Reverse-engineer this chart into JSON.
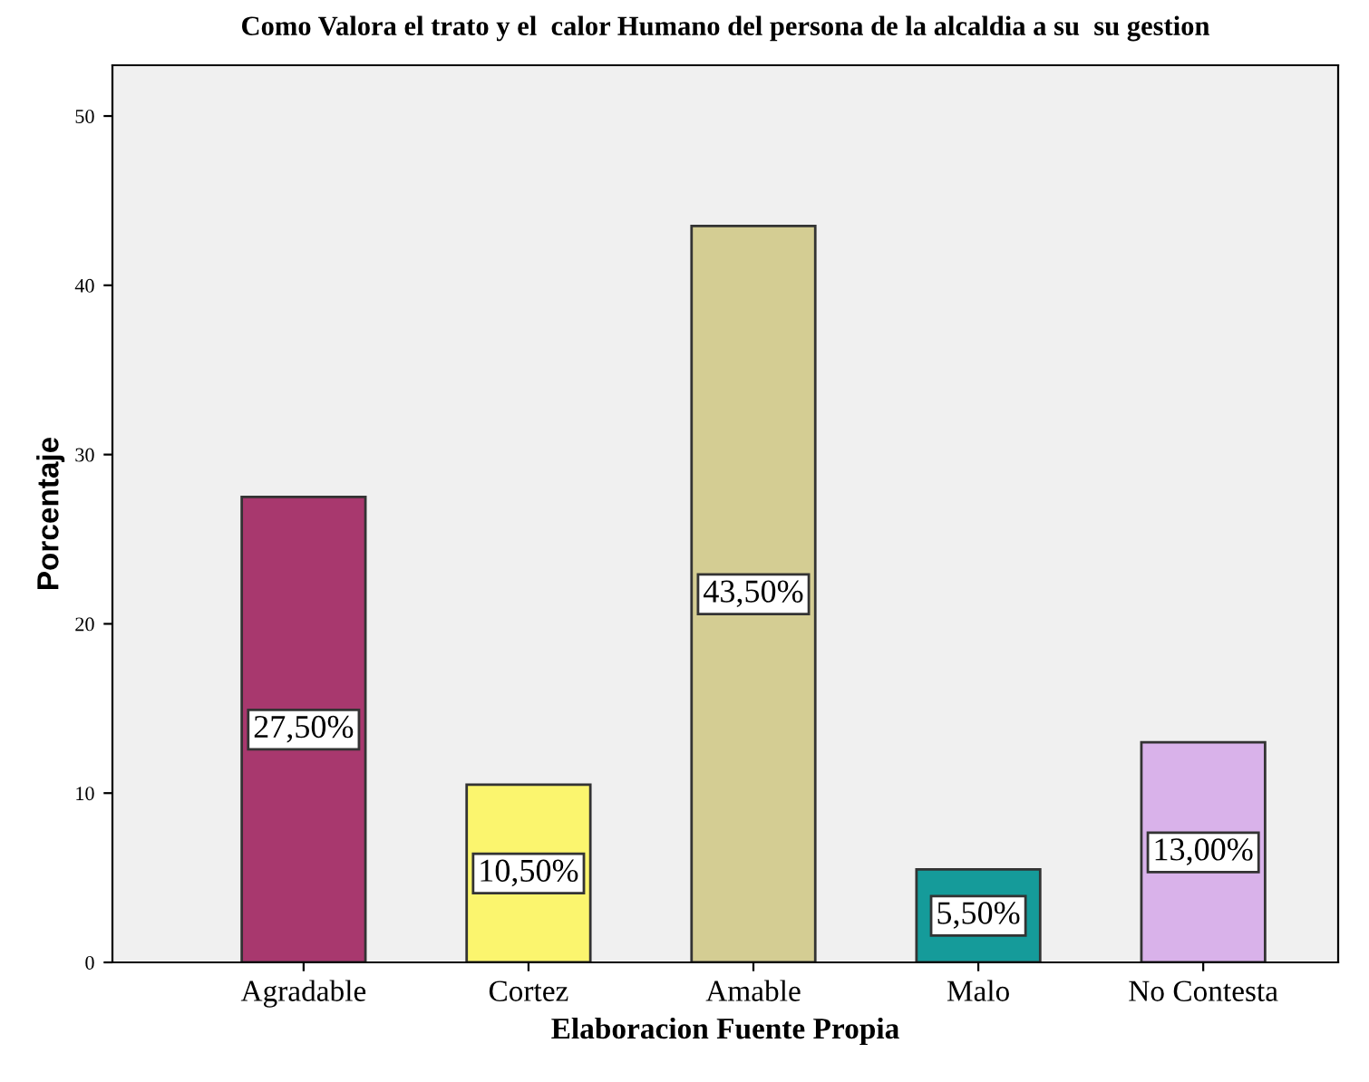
{
  "chart_data": {
    "type": "bar",
    "title": "Como Valora el trato y el  calor Humano del persona de la alcaldia a su  su gestion",
    "xlabel": "Elaboracion Fuente Propia",
    "ylabel": "Porcentaje",
    "categories": [
      "Agradable",
      "Cortez",
      "Amable",
      "Malo",
      "No Contesta"
    ],
    "values": [
      27.5,
      10.5,
      43.5,
      5.5,
      13.0
    ],
    "value_labels": [
      "27,50%",
      "10,50%",
      "43,50%",
      "5,50%",
      "13,00%"
    ],
    "colors": [
      "#a8386e",
      "#fbf56e",
      "#d4cd93",
      "#159b9a",
      "#d9b2ea"
    ],
    "ylim": [
      0,
      53
    ],
    "yticks": [
      0,
      10,
      20,
      30,
      40,
      50
    ],
    "grid": false,
    "legend": false
  }
}
